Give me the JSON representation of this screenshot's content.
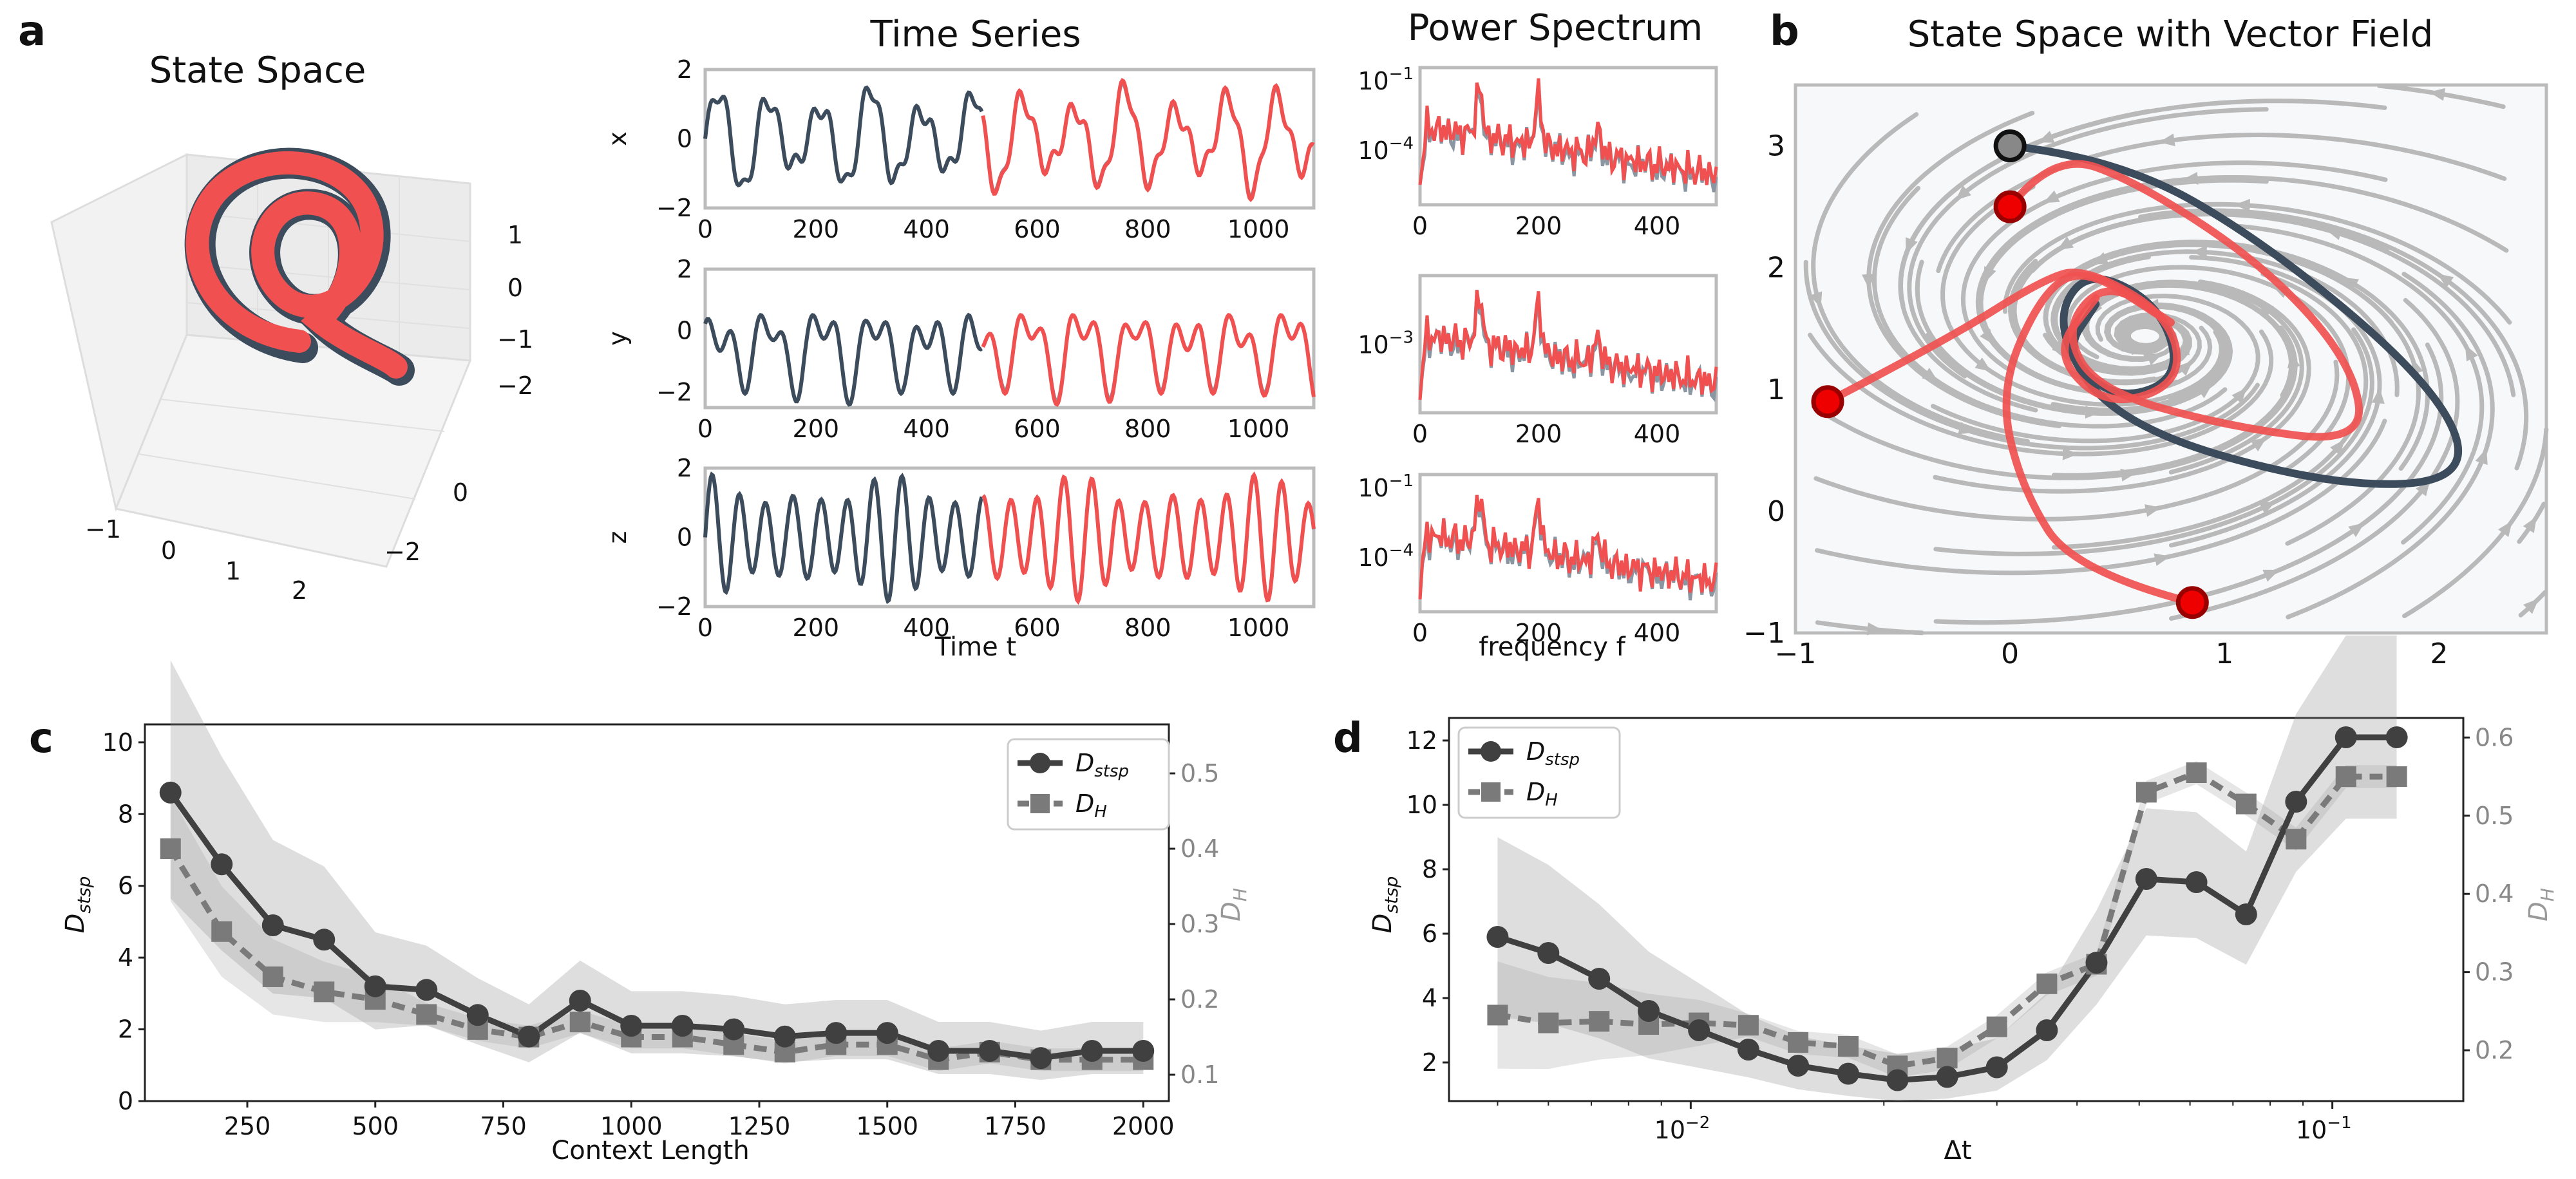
{
  "panels": {
    "a": "a",
    "b": "b",
    "c": "c",
    "d": "d"
  },
  "colors": {
    "ground_truth": "#3c4c5c",
    "reconstruction": "#f05050",
    "gt_spectrum": "#8a96a2",
    "streamline": "#b9b9b9",
    "dark": "#404040",
    "gray": "#7a7a7a"
  },
  "chart_data": [
    {
      "id": "state_space_3d",
      "type": "line",
      "title": "State Space",
      "z_ticks": [
        "1",
        "0",
        "−1",
        "−2"
      ],
      "y_ticks": [
        "0",
        "−2"
      ],
      "x_ticks": [
        "−1",
        "0",
        "1",
        "2"
      ]
    },
    {
      "id": "time_series",
      "type": "line",
      "title": "Time Series",
      "xlabel": "Time t",
      "xlim": [
        0,
        1100
      ],
      "x_ticks": [
        "0",
        "200",
        "400",
        "600",
        "800",
        "1000"
      ],
      "context_end": 500,
      "series": [
        {
          "name": "x",
          "ylim": [
            -2,
            2
          ],
          "y_ticks": [
            "2",
            "0",
            "−2"
          ]
        },
        {
          "name": "y",
          "ylim": [
            -2.5,
            2
          ],
          "y_ticks": [
            "2",
            "0",
            "−2"
          ]
        },
        {
          "name": "z",
          "ylim": [
            -2,
            2
          ],
          "y_ticks": [
            "2",
            "0",
            "−2"
          ]
        }
      ]
    },
    {
      "id": "power_spectrum",
      "type": "line",
      "title": "Power Spectrum",
      "xlabel": "frequency f",
      "xlim": [
        0,
        500
      ],
      "x_ticks": [
        "0",
        "200",
        "400"
      ],
      "peaks": [
        100,
        200,
        300
      ],
      "rows": [
        {
          "base": "10",
          "ticks": [
            {
              "exp": "−1"
            },
            {
              "exp": "−4"
            }
          ]
        },
        {
          "base": "10",
          "ticks": [
            {
              "exp": "−3"
            }
          ]
        },
        {
          "base": "10",
          "ticks": [
            {
              "exp": "−1"
            },
            {
              "exp": "−4"
            }
          ]
        }
      ]
    },
    {
      "id": "vector_field",
      "type": "line",
      "title": "State Space with Vector Field",
      "xlim": [
        -1,
        2.5
      ],
      "ylim": [
        -1,
        3.5
      ],
      "x_ticks": [
        "−1",
        "0",
        "1",
        "2"
      ],
      "y_ticks": [
        "3",
        "2",
        "1",
        "0",
        "−1"
      ],
      "start_points": [
        [
          0,
          3
        ],
        [
          -0.85,
          0.9
        ],
        [
          0,
          2.5
        ],
        [
          0.85,
          -0.75
        ]
      ]
    },
    {
      "id": "context_length",
      "type": "line",
      "xlabel": "Context Length",
      "ylabel": "D_stsp",
      "ylabel2": "D_H",
      "xlim": [
        50,
        2050
      ],
      "ylim": [
        0,
        10.5
      ],
      "ylim2": [
        0.065,
        0.565
      ],
      "x_ticks": [
        "250",
        "500",
        "750",
        "1000",
        "1250",
        "1500",
        "1750",
        "2000"
      ],
      "y_ticks": [
        "0",
        "2",
        "4",
        "6",
        "8",
        "10"
      ],
      "y2_ticks": [
        "0.1",
        "0.2",
        "0.3",
        "0.4",
        "0.5"
      ],
      "legend": [
        "D",
        "stsp",
        "D",
        "H"
      ],
      "x": [
        100,
        200,
        300,
        400,
        500,
        600,
        700,
        800,
        900,
        1000,
        1100,
        1200,
        1300,
        1400,
        1500,
        1600,
        1700,
        1800,
        1900,
        2000
      ],
      "series": [
        {
          "name": "D_stsp",
          "values": [
            8.6,
            6.6,
            4.9,
            4.5,
            3.2,
            3.1,
            2.4,
            1.8,
            2.8,
            2.1,
            2.1,
            2.0,
            1.8,
            1.9,
            1.9,
            1.4,
            1.4,
            1.2,
            1.4,
            1.4
          ]
        },
        {
          "name": "D_H",
          "values": [
            0.4,
            0.29,
            0.23,
            0.21,
            0.2,
            0.18,
            0.16,
            0.15,
            0.17,
            0.15,
            0.15,
            0.14,
            0.13,
            0.14,
            0.14,
            0.12,
            0.13,
            0.12,
            0.12,
            0.12
          ]
        }
      ]
    },
    {
      "id": "dt_sweep",
      "type": "line",
      "xlabel": "Δt",
      "ylabel": "D_stsp",
      "ylabel2": "D_H",
      "xscale": "log",
      "xlim": [
        0.0042,
        0.16
      ],
      "ylim": [
        0.8,
        12.7
      ],
      "ylim2": [
        0.135,
        0.625
      ],
      "x_ticks": [
        {
          "base": "10",
          "exp": "−2"
        },
        {
          "base": "10",
          "exp": "−1"
        }
      ],
      "y_ticks": [
        "2",
        "4",
        "6",
        "8",
        "10",
        "12"
      ],
      "y2_ticks": [
        "0.2",
        "0.3",
        "0.4",
        "0.5",
        "0.6"
      ],
      "legend": [
        "D",
        "stsp",
        "D",
        "H"
      ],
      "x": [
        0.005,
        0.006,
        0.0072,
        0.0086,
        0.0103,
        0.0123,
        0.0147,
        0.0176,
        0.021,
        0.0251,
        0.03,
        0.0359,
        0.0429,
        0.0513,
        0.0614,
        0.0734,
        0.0878,
        0.105,
        0.126
      ],
      "series": [
        {
          "name": "D_stsp",
          "values": [
            5.9,
            5.4,
            4.6,
            3.6,
            3.0,
            2.4,
            1.9,
            1.65,
            1.45,
            1.55,
            1.85,
            3.0,
            5.1,
            7.7,
            7.6,
            6.6,
            10.1,
            12.1,
            12.1
          ]
        },
        {
          "name": "D_H",
          "values": [
            0.245,
            0.235,
            0.237,
            0.233,
            0.235,
            0.232,
            0.21,
            0.205,
            0.18,
            0.19,
            0.23,
            0.285,
            0.31,
            0.53,
            0.555,
            0.515,
            0.47,
            0.55,
            0.55
          ]
        }
      ]
    }
  ]
}
